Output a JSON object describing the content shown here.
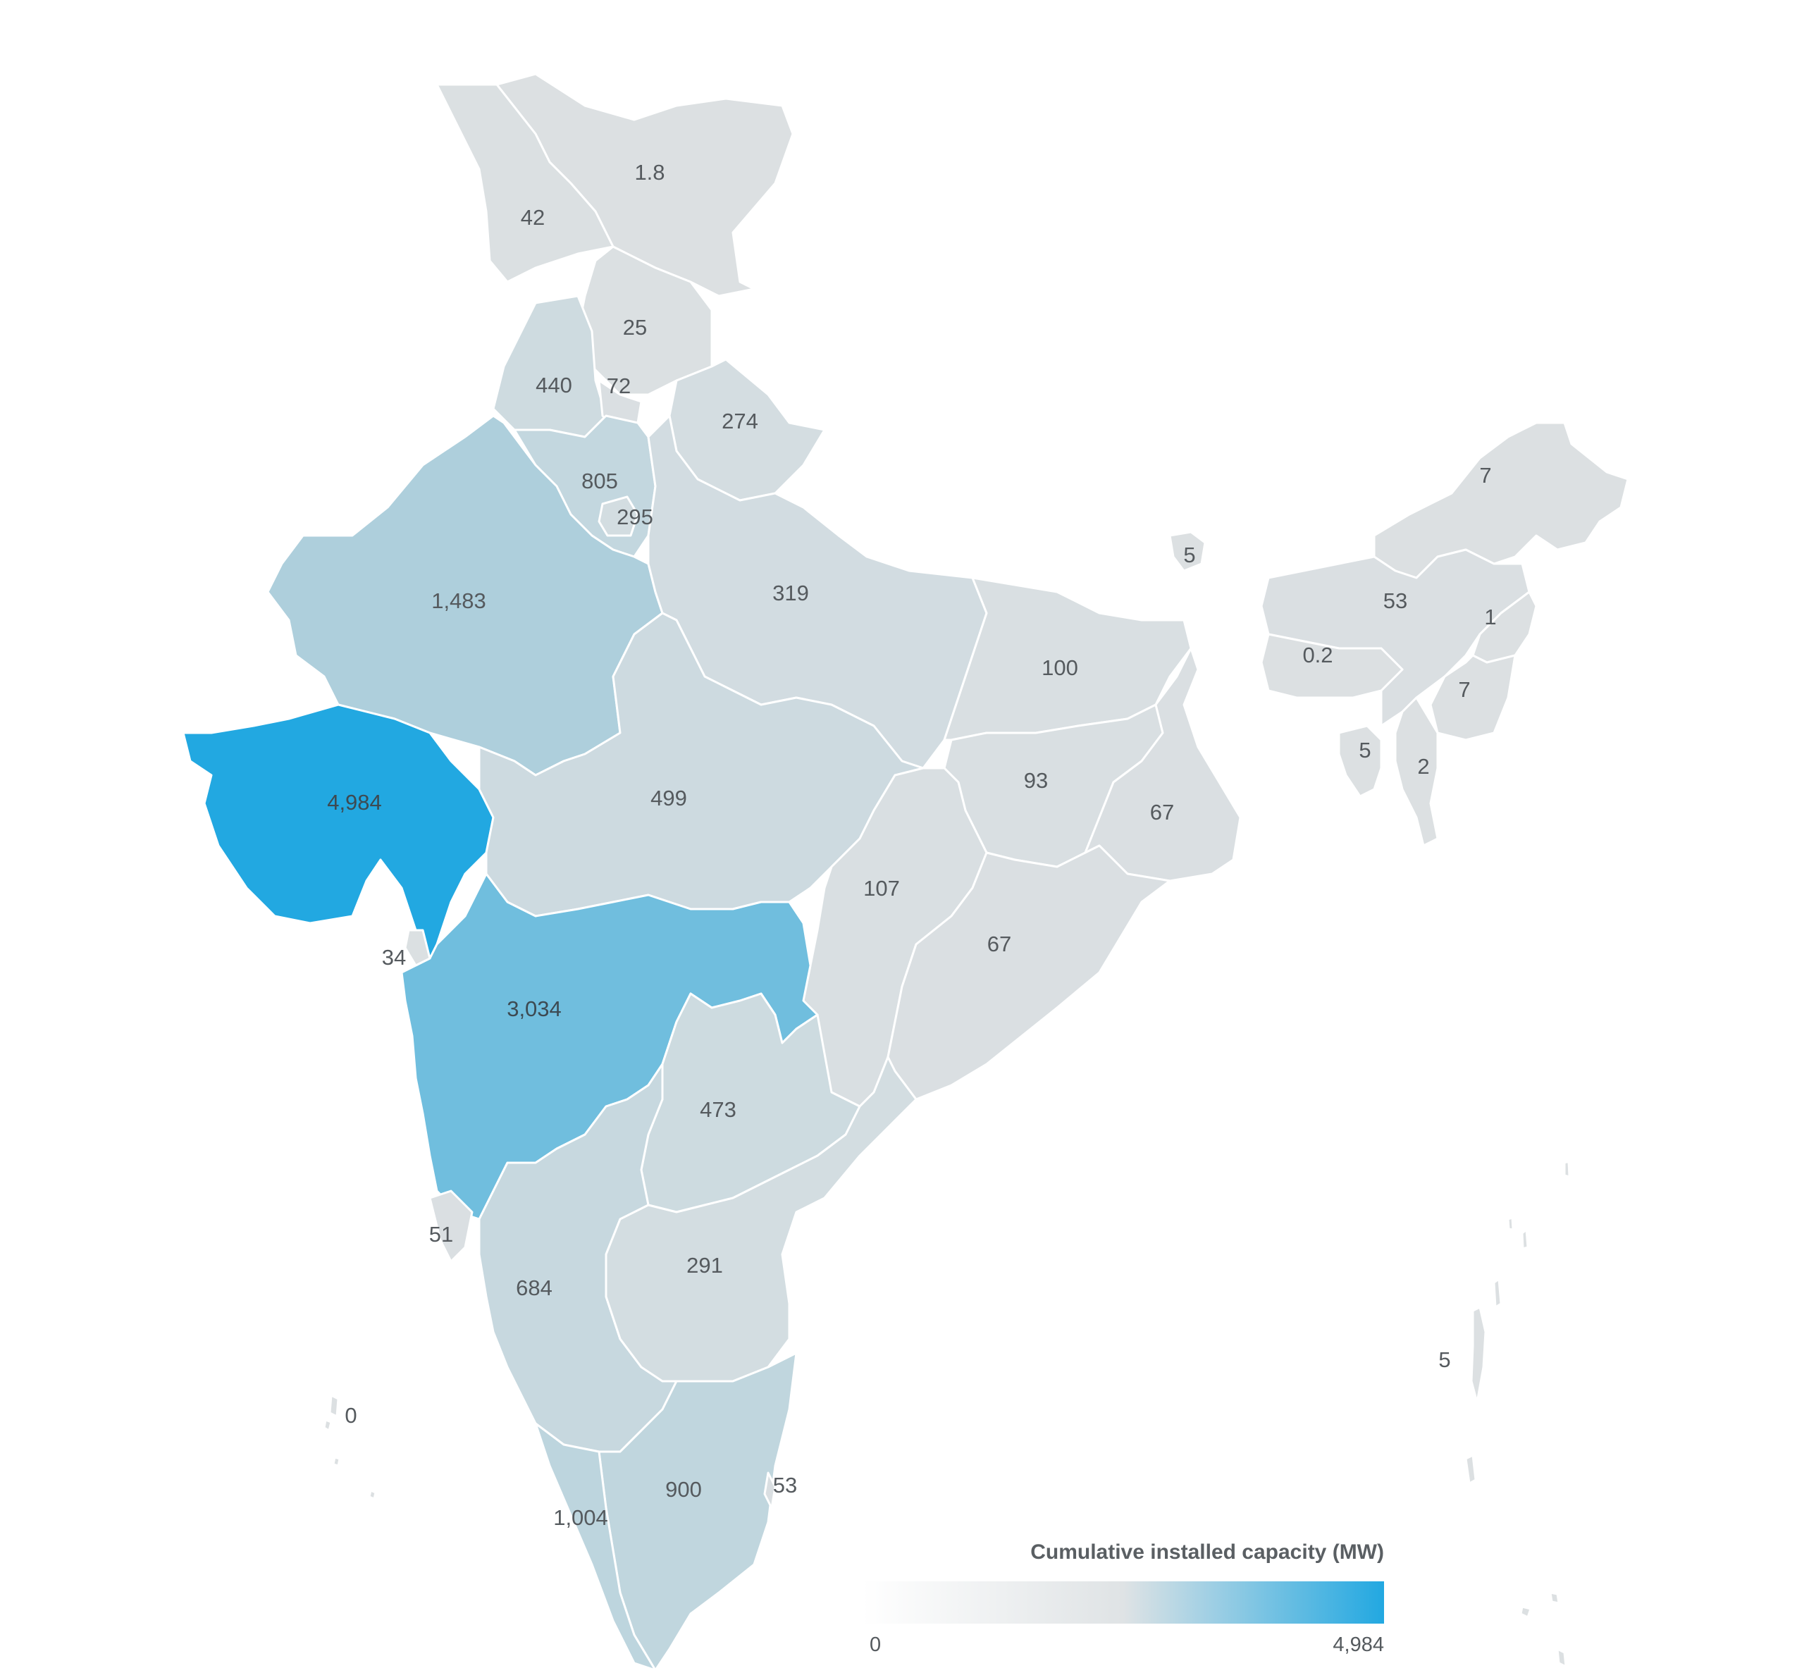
{
  "colors": {
    "background": "#ffffff",
    "scale_min": "#ffffff",
    "scale_mid": "#dfe3e5",
    "scale_max": "#22a8e1",
    "border": "#ffffff",
    "label_text": "#555a5e"
  },
  "legend": {
    "title": "Cumulative installed capacity (MW)",
    "min_label": "0",
    "max_label": "4,984",
    "min_value": 0,
    "max_value": 4984
  },
  "regions": [
    {
      "id": "ladakh",
      "label": "1.8",
      "value": 1.8
    },
    {
      "id": "jammu-kashmir",
      "label": "42",
      "value": 42
    },
    {
      "id": "himachal-pradesh",
      "label": "25",
      "value": 25
    },
    {
      "id": "punjab",
      "label": "440",
      "value": 440
    },
    {
      "id": "chandigarh",
      "label": "72",
      "value": 72
    },
    {
      "id": "uttarakhand",
      "label": "274",
      "value": 274
    },
    {
      "id": "haryana",
      "label": "805",
      "value": 805
    },
    {
      "id": "delhi",
      "label": "295",
      "value": 295
    },
    {
      "id": "rajasthan",
      "label": "1,483",
      "value": 1483
    },
    {
      "id": "uttar-pradesh",
      "label": "319",
      "value": 319
    },
    {
      "id": "gujarat",
      "label": "4,984",
      "value": 4984
    },
    {
      "id": "madhya-pradesh",
      "label": "499",
      "value": 499
    },
    {
      "id": "bihar",
      "label": "100",
      "value": 100
    },
    {
      "id": "jharkhand",
      "label": "93",
      "value": 93
    },
    {
      "id": "west-bengal",
      "label": "67",
      "value": 67
    },
    {
      "id": "chhattisgarh",
      "label": "107",
      "value": 107
    },
    {
      "id": "odisha",
      "label": "67",
      "value": 67
    },
    {
      "id": "maharashtra",
      "label": "3,034",
      "value": 3034
    },
    {
      "id": "dadra-nagar-haveli-daman-diu",
      "label": "34",
      "value": 34
    },
    {
      "id": "telangana",
      "label": "473",
      "value": 473
    },
    {
      "id": "goa",
      "label": "51",
      "value": 51
    },
    {
      "id": "karnataka",
      "label": "684",
      "value": 684
    },
    {
      "id": "andhra-pradesh",
      "label": "291",
      "value": 291
    },
    {
      "id": "tamil-nadu",
      "label": "900",
      "value": 900
    },
    {
      "id": "kerala",
      "label": "1,004",
      "value": 1004
    },
    {
      "id": "puducherry",
      "label": "53",
      "value": 53
    },
    {
      "id": "lakshadweep",
      "label": "0",
      "value": 0
    },
    {
      "id": "sikkim",
      "label": "5",
      "value": 5
    },
    {
      "id": "arunachal-pradesh",
      "label": "7",
      "value": 7
    },
    {
      "id": "assam",
      "label": "53",
      "value": 53
    },
    {
      "id": "meghalaya",
      "label": "0.2",
      "value": 0.2
    },
    {
      "id": "nagaland",
      "label": "1",
      "value": 1
    },
    {
      "id": "manipur",
      "label": "7",
      "value": 7
    },
    {
      "id": "tripura",
      "label": "5",
      "value": 5
    },
    {
      "id": "mizoram",
      "label": "2",
      "value": 2
    },
    {
      "id": "andaman-nicobar",
      "label": "5",
      "value": 5
    }
  ]
}
